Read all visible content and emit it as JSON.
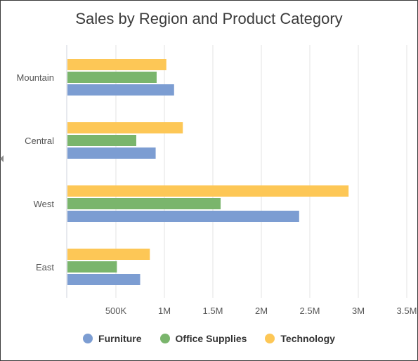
{
  "chart_data": {
    "type": "bar",
    "orientation": "horizontal",
    "title": "Sales by Region and Product Category",
    "categories": [
      "Mountain",
      "Central",
      "West",
      "East"
    ],
    "series": [
      {
        "name": "Technology",
        "color": "#FDC756",
        "values": [
          1020000,
          1190000,
          2900000,
          850000
        ]
      },
      {
        "name": "Office Supplies",
        "color": "#7AB56C",
        "values": [
          920000,
          710000,
          1580000,
          510000
        ]
      },
      {
        "name": "Furniture",
        "color": "#7C9DD2",
        "values": [
          1100000,
          910000,
          2390000,
          750000
        ]
      }
    ],
    "x_ticks": [
      "500K",
      "1M",
      "1.5M",
      "2M",
      "2.5M",
      "3M",
      "3.5M"
    ],
    "x_tick_values": [
      500000,
      1000000,
      1500000,
      2000000,
      2500000,
      3000000,
      3500000
    ],
    "xlim": [
      0,
      3500000
    ],
    "grid": true,
    "legend_position": "bottom",
    "legend": [
      {
        "name": "Furniture",
        "color": "#7C9DD2"
      },
      {
        "name": "Office Supplies",
        "color": "#7AB56C"
      },
      {
        "name": "Technology",
        "color": "#FDC756"
      }
    ]
  }
}
